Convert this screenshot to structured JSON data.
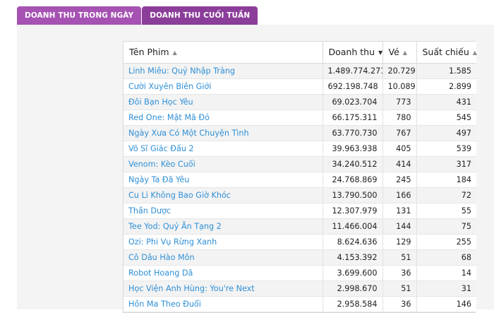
{
  "tabs": [
    {
      "label": "DOANH THU TRONG NGÀY"
    },
    {
      "label": "DOANH THU CUỐI TUẦN"
    }
  ],
  "table": {
    "headers": {
      "name": "Tên Phim",
      "revenue": "Doanh thu",
      "tickets": "Vé",
      "showings": "Suất chiếu"
    },
    "rows": [
      {
        "name": "Linh Miêu: Quỷ Nhập Tràng",
        "revenue": "1.489.774.271",
        "tickets": "20.729",
        "showings": "1.585"
      },
      {
        "name": "Cười Xuyên Biên Giới",
        "revenue": "692.198.748",
        "tickets": "10.089",
        "showings": "2.899"
      },
      {
        "name": "Đôi Bạn Học Yêu",
        "revenue": "69.023.704",
        "tickets": "773",
        "showings": "431"
      },
      {
        "name": "Red One: Mật Mã Đỏ",
        "revenue": "66.175.311",
        "tickets": "780",
        "showings": "545"
      },
      {
        "name": "Ngày Xưa Có Một Chuyện Tình",
        "revenue": "63.770.730",
        "tickets": "767",
        "showings": "497"
      },
      {
        "name": "Võ Sĩ Giác Đấu 2",
        "revenue": "39.963.938",
        "tickets": "405",
        "showings": "539"
      },
      {
        "name": "Venom: Kèo Cuối",
        "revenue": "34.240.512",
        "tickets": "414",
        "showings": "317"
      },
      {
        "name": "Ngày Ta Đã Yêu",
        "revenue": "24.768.869",
        "tickets": "245",
        "showings": "184"
      },
      {
        "name": "Cu Li Không Bao Giờ Khóc",
        "revenue": "13.790.500",
        "tickets": "166",
        "showings": "72"
      },
      {
        "name": "Thần Dược",
        "revenue": "12.307.979",
        "tickets": "131",
        "showings": "55"
      },
      {
        "name": "Tee Yod: Quỷ Ăn Tạng 2",
        "revenue": "11.466.004",
        "tickets": "144",
        "showings": "75"
      },
      {
        "name": "Ozi: Phi Vụ Rừng Xanh",
        "revenue": "8.624.636",
        "tickets": "129",
        "showings": "255"
      },
      {
        "name": "Cô Dâu Hào Môn",
        "revenue": "4.153.392",
        "tickets": "51",
        "showings": "68"
      },
      {
        "name": "Robot Hoang Dã",
        "revenue": "3.699.600",
        "tickets": "36",
        "showings": "14"
      },
      {
        "name": "Học Viện Anh Hùng: You're Next",
        "revenue": "2.998.670",
        "tickets": "51",
        "showings": "31"
      },
      {
        "name": "Hồn Ma Theo Đuổi",
        "revenue": "2.958.584",
        "tickets": "36",
        "showings": "146"
      }
    ]
  },
  "colors": {
    "tab_inactive": "#a552b3",
    "tab_active": "#8b3d9a",
    "link": "#2e8fd6"
  }
}
